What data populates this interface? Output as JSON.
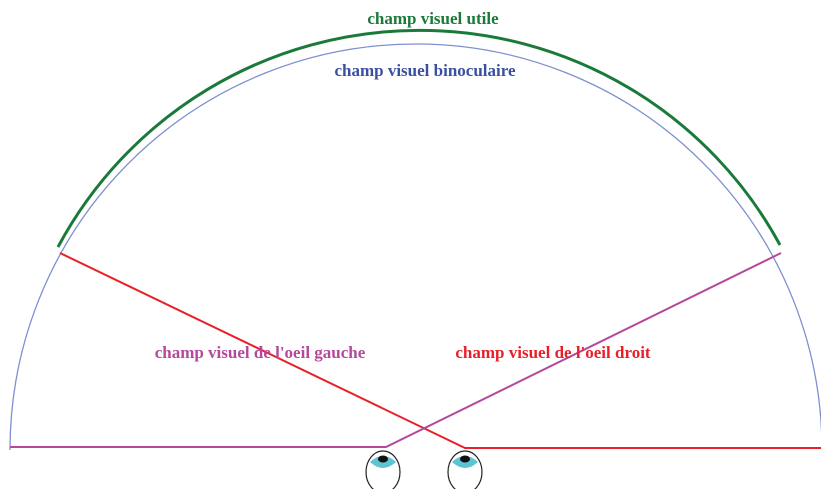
{
  "labels": {
    "useful_field": "champ visuel utile",
    "binocular_field": "champ visuel binoculaire",
    "left_eye_field": "champ visuel de l'oeil gauche",
    "right_eye_field": "champ visuel de l'oeil droit"
  }
}
